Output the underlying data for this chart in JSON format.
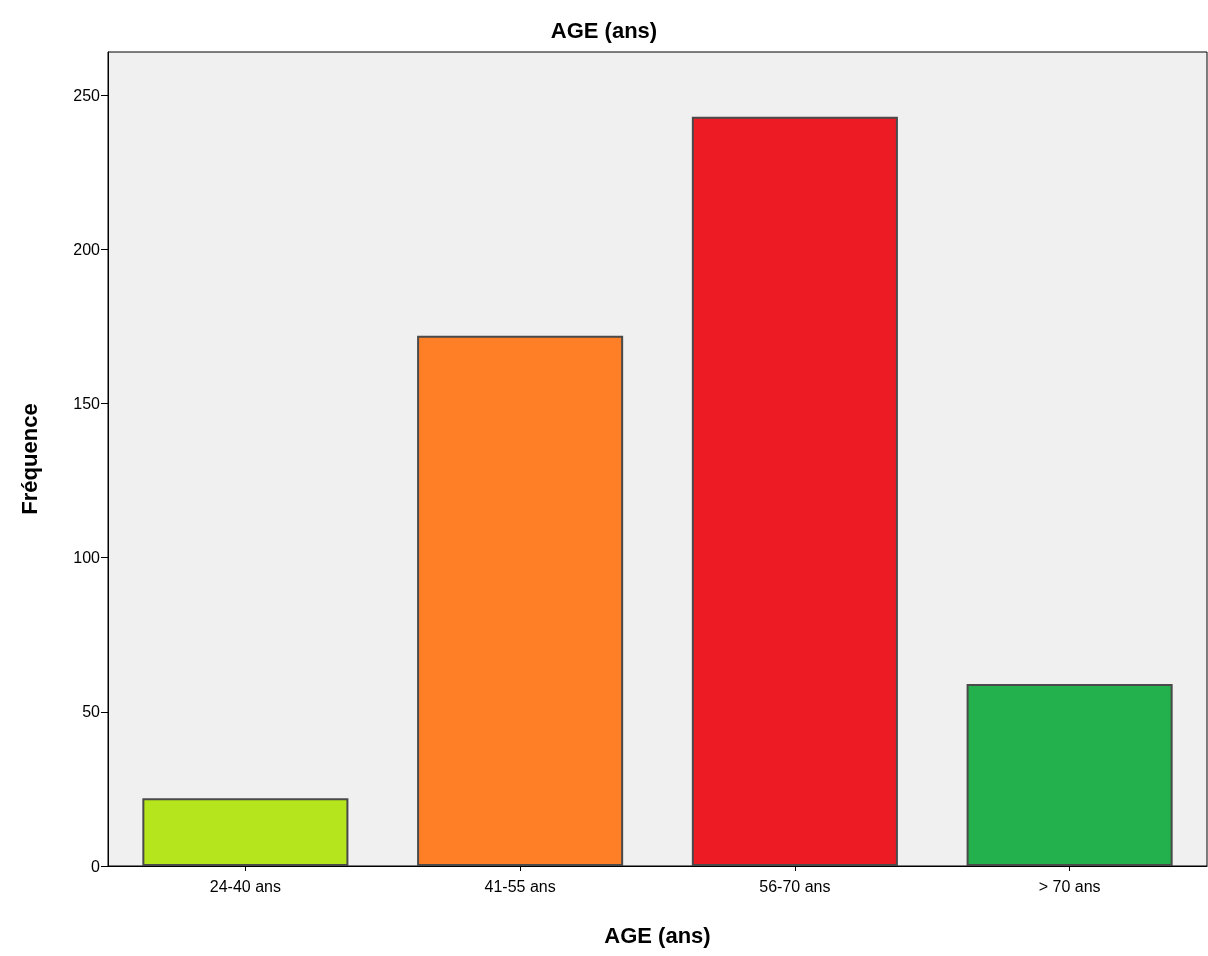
{
  "chart_data": {
    "type": "bar",
    "title": "AGE (ans)",
    "xlabel": "AGE (ans)",
    "ylabel": "Fréquence",
    "categories": [
      "24-40 ans",
      "41-55 ans",
      "56-70 ans",
      "> 70 ans"
    ],
    "values": [
      22,
      172,
      243,
      59
    ],
    "colors": [
      "#b5e61d",
      "#ff7f27",
      "#ed1c24",
      "#22b14c"
    ],
    "ylim": [
      0,
      264
    ],
    "yticks": [
      0,
      50,
      100,
      150,
      200,
      250
    ],
    "grid": false
  }
}
